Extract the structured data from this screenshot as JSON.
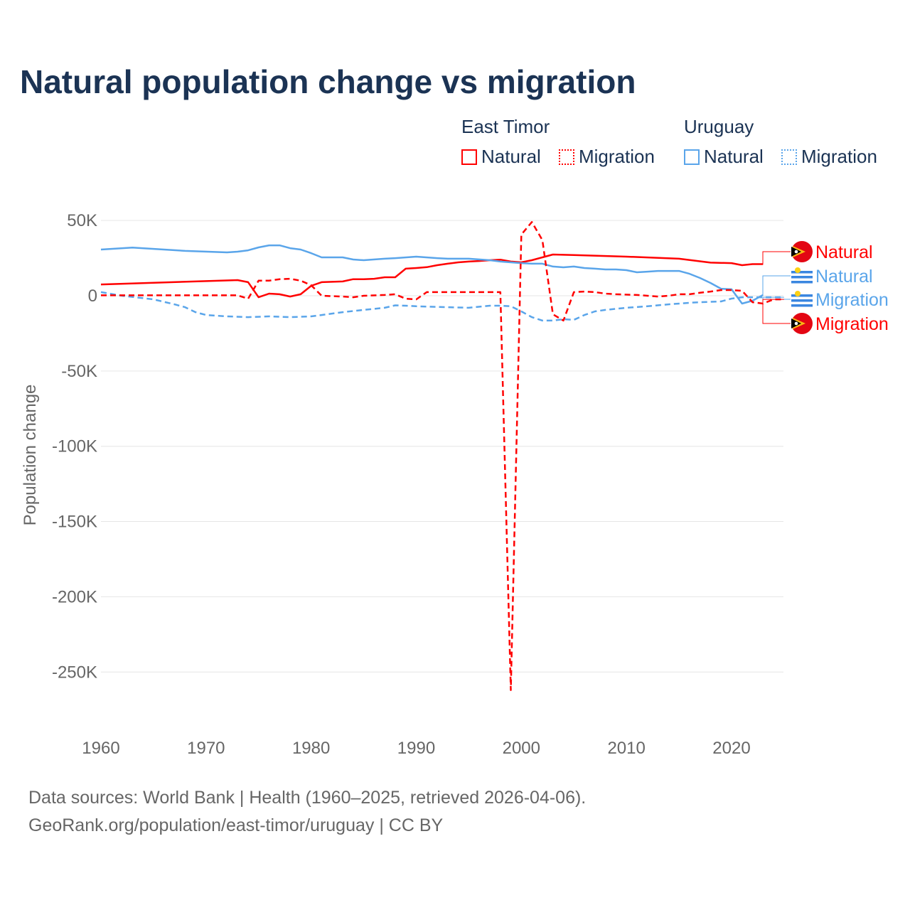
{
  "title": "Natural population change vs migration",
  "legend": {
    "groups": [
      {
        "name": "East Timor",
        "natural": "Natural",
        "migration": "Migration",
        "color": "#ff0000"
      },
      {
        "name": "Uruguay",
        "natural": "Natural",
        "migration": "Migration",
        "color": "#5aa5ea"
      }
    ]
  },
  "footer": {
    "line1": "Data sources: World Bank | Health (1960–2025, retrieved 2026-04-06).",
    "line2": "GeoRank.org/population/east-timor/uruguay | CC BY"
  },
  "chart_data": {
    "type": "line",
    "title": "Natural population change vs migration",
    "xlabel": "",
    "ylabel": "Population change",
    "xlim": [
      1960,
      2025
    ],
    "ylim": [
      -275000,
      55000
    ],
    "xticks": [
      1960,
      1970,
      1980,
      1990,
      2000,
      2010,
      2020
    ],
    "yticks": [
      {
        "v": 50000,
        "l": "50K"
      },
      {
        "v": 0,
        "l": "0"
      },
      {
        "v": -50000,
        "l": "-50K"
      },
      {
        "v": -100000,
        "l": "-100K"
      },
      {
        "v": -150000,
        "l": "-150K"
      },
      {
        "v": -200000,
        "l": "-200K"
      },
      {
        "v": -250000,
        "l": "-250K"
      }
    ],
    "series": [
      {
        "name": "East Timor Natural",
        "label": "Natural",
        "country": "East Timor",
        "color": "#ff0000",
        "dash": false,
        "x": [
          1960,
          1973,
          1974,
          1975,
          1976,
          1977,
          1978,
          1979,
          1980,
          1981,
          1983,
          1984,
          1985,
          1986,
          1987,
          1988,
          1989,
          1990,
          1991,
          1992,
          1993,
          1994,
          1995,
          1996,
          1997,
          1998,
          1999,
          2000,
          2001,
          2002,
          2003,
          2005,
          2010,
          2015,
          2018,
          2020,
          2021,
          2022,
          2023
        ],
        "y": [
          7500,
          10400,
          9000,
          -1000,
          1400,
          1000,
          -500,
          1000,
          6600,
          9000,
          9500,
          11000,
          11000,
          11300,
          12300,
          12300,
          18000,
          18400,
          19000,
          20300,
          21300,
          22200,
          22700,
          23100,
          23600,
          24000,
          22700,
          22200,
          23600,
          25500,
          27400,
          27000,
          26000,
          24600,
          22000,
          21700,
          20300,
          21000,
          21000
        ]
      },
      {
        "name": "Uruguay Natural",
        "label": "Natural",
        "country": "Uruguay",
        "color": "#5aa5ea",
        "dash": false,
        "x": [
          1960,
          1963,
          1966,
          1968,
          1972,
          1973,
          1974,
          1975,
          1976,
          1977,
          1978,
          1979,
          1980,
          1981,
          1983,
          1984,
          1985,
          1987,
          1988,
          1990,
          1992,
          1993,
          1995,
          1997,
          1998,
          1999,
          2000,
          2001,
          2002,
          2003,
          2004,
          2005,
          2006,
          2007,
          2008,
          2009,
          2010,
          2011,
          2012,
          2013,
          2015,
          2016,
          2017,
          2018,
          2019,
          2020,
          2021,
          2022,
          2023
        ],
        "y": [
          30700,
          32000,
          30700,
          29800,
          28800,
          29300,
          30200,
          32100,
          33500,
          33500,
          31600,
          30700,
          28300,
          25500,
          25500,
          24100,
          23600,
          24600,
          25000,
          26000,
          25000,
          24600,
          24600,
          23600,
          22700,
          22200,
          21700,
          21300,
          21300,
          19400,
          18900,
          19400,
          18400,
          18000,
          17500,
          17500,
          17000,
          15600,
          16000,
          16500,
          16500,
          14600,
          11800,
          8500,
          4700,
          4300,
          -5200,
          -3300,
          500
        ]
      },
      {
        "name": "Uruguay Migration",
        "label": "Migration",
        "country": "Uruguay",
        "color": "#5aa5ea",
        "dash": true,
        "x": [
          1960,
          1962,
          1965,
          1967,
          1968,
          1969,
          1970,
          1972,
          1974,
          1976,
          1978,
          1980,
          1981,
          1983,
          1985,
          1987,
          1988,
          1989,
          1990,
          1993,
          1995,
          1997,
          1998,
          1999,
          2000,
          2001,
          2002,
          2003,
          2004,
          2005,
          2006,
          2007,
          2008,
          2010,
          2012,
          2014,
          2016,
          2017,
          2019,
          2020,
          2021,
          2025
        ],
        "y": [
          2400,
          0,
          -2400,
          -5700,
          -7600,
          -10900,
          -12800,
          -13700,
          -14200,
          -13700,
          -14200,
          -13700,
          -12800,
          -10900,
          -9400,
          -8000,
          -6400,
          -6600,
          -7000,
          -7600,
          -8000,
          -6600,
          -6600,
          -7000,
          -10400,
          -14200,
          -16500,
          -16500,
          -15600,
          -16000,
          -12800,
          -10400,
          -9400,
          -8000,
          -7000,
          -5700,
          -4700,
          -4300,
          -3800,
          -1900,
          -1000,
          -1000
        ]
      },
      {
        "name": "East Timor Migration",
        "label": "Migration",
        "country": "East Timor",
        "color": "#ff0000",
        "dash": true,
        "x": [
          1960,
          1973,
          1974,
          1975,
          1976,
          1977,
          1978,
          1979,
          1980,
          1981,
          1983,
          1984,
          1985,
          1987,
          1988,
          1989,
          1990,
          1991,
          1998,
          1999,
          2000,
          2001,
          2002,
          2003,
          2004,
          2005,
          2006,
          2007,
          2008,
          2009,
          2011,
          2012,
          2013,
          2014,
          2015,
          2016,
          2017,
          2018,
          2019,
          2020,
          2021,
          2022,
          2023,
          2024,
          2025
        ],
        "y": [
          300,
          300,
          -2000,
          10000,
          10000,
          11000,
          11300,
          10000,
          7000,
          0,
          -500,
          -1000,
          0,
          500,
          1000,
          -2000,
          -2400,
          2400,
          2400,
          -262000,
          40600,
          49000,
          37000,
          -12300,
          -16500,
          2400,
          2800,
          2400,
          1400,
          1000,
          500,
          0,
          -500,
          0,
          1000,
          1000,
          2000,
          2800,
          3800,
          3800,
          3300,
          -4300,
          -5200,
          -2400,
          -2400
        ]
      }
    ]
  }
}
